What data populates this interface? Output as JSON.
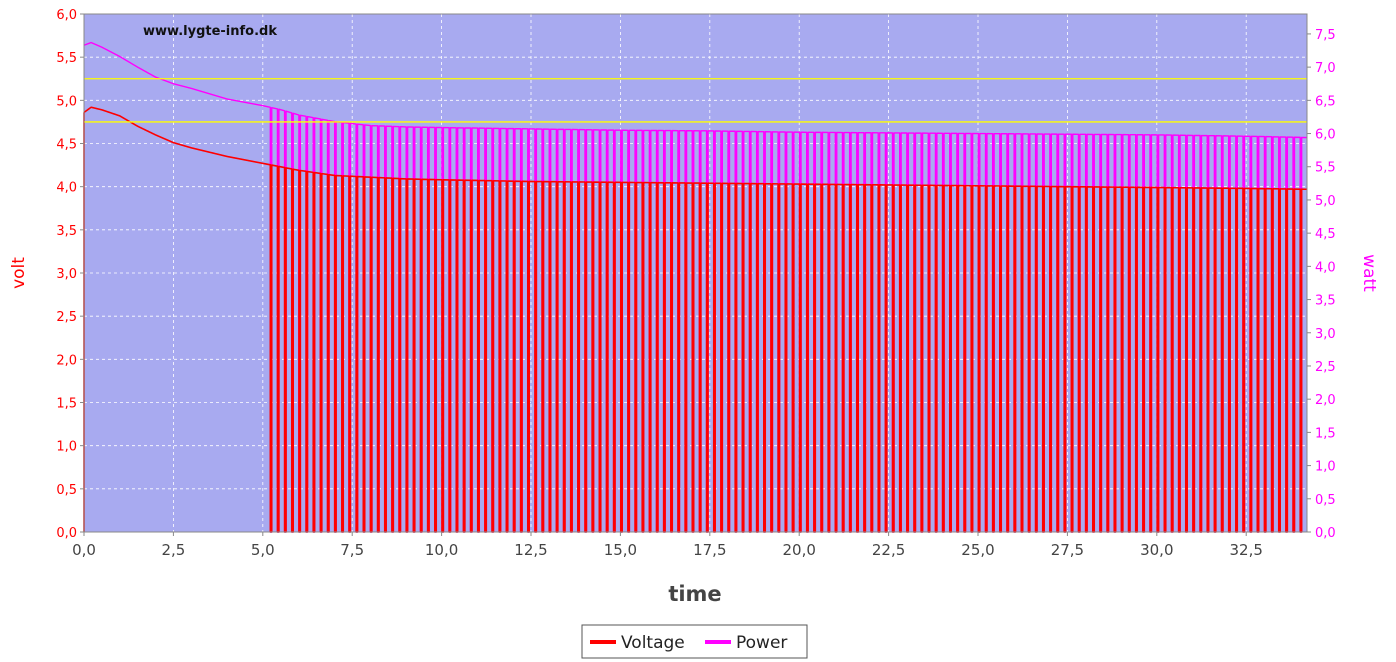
{
  "watermark": "www.lygte-info.dk",
  "chart_data": {
    "type": "line",
    "title": "",
    "xlabel": "time",
    "ylabel": "volt",
    "y2label": "watt",
    "xlim": [
      0,
      34.2
    ],
    "ylim": [
      0,
      6.0
    ],
    "y2lim": [
      0,
      7.8
    ],
    "x_ticks": [
      "0,0",
      "2,5",
      "5,0",
      "7,5",
      "10,0",
      "12,5",
      "15,0",
      "17,5",
      "20,0",
      "22,5",
      "25,0",
      "27,5",
      "30,0",
      "32,5"
    ],
    "x_tick_values": [
      0,
      2.5,
      5,
      7.5,
      10,
      12.5,
      15,
      17.5,
      20,
      22.5,
      25,
      27.5,
      30,
      32.5
    ],
    "y_ticks": [
      "0,0",
      "0,5",
      "1,0",
      "1,5",
      "2,0",
      "2,5",
      "3,0",
      "3,5",
      "4,0",
      "4,5",
      "5,0",
      "5,5",
      "6,0"
    ],
    "y_tick_values": [
      0,
      0.5,
      1.0,
      1.5,
      2.0,
      2.5,
      3.0,
      3.5,
      4.0,
      4.5,
      5.0,
      5.5,
      6.0
    ],
    "y2_ticks": [
      "0,0",
      "0,5",
      "1,0",
      "1,5",
      "2,0",
      "2,5",
      "3,0",
      "3,5",
      "4,0",
      "4,5",
      "5,0",
      "5,5",
      "6,0",
      "6,5",
      "7,0",
      "7,5"
    ],
    "y2_tick_values": [
      0,
      0.5,
      1.0,
      1.5,
      2.0,
      2.5,
      3.0,
      3.5,
      4.0,
      4.5,
      5.0,
      5.5,
      6.0,
      6.5,
      7.0,
      7.5
    ],
    "reference_lines_volt": [
      5.25,
      4.75
    ],
    "pulsing_start": 5.05,
    "pulse_period": 0.2,
    "grid": true,
    "legend_position": "bottom-center",
    "colors": {
      "plot_background": "#a8aaf0",
      "voltage": "#ff0000",
      "power": "#ff00ff",
      "reference": "#ffff00",
      "grid": "#ffffff"
    },
    "series": [
      {
        "name": "Voltage",
        "axis": "left",
        "x": [
          0,
          0.2,
          0.5,
          1.0,
          1.5,
          2.0,
          2.5,
          3.0,
          3.5,
          4.0,
          4.5,
          5.0,
          5.5,
          6.0,
          6.5,
          7.0,
          7.5,
          8.0,
          9.0,
          10.0,
          12.5,
          15.0,
          17.5,
          20.0,
          22.5,
          25.0,
          27.5,
          30.0,
          32.5,
          34.2
        ],
        "values": [
          4.86,
          4.92,
          4.89,
          4.82,
          4.7,
          4.6,
          4.51,
          4.45,
          4.4,
          4.35,
          4.31,
          4.27,
          4.23,
          4.19,
          4.16,
          4.13,
          4.12,
          4.11,
          4.09,
          4.08,
          4.06,
          4.05,
          4.04,
          4.03,
          4.02,
          4.01,
          4.0,
          3.99,
          3.98,
          3.97
        ]
      },
      {
        "name": "Power",
        "axis": "right",
        "x": [
          0,
          0.2,
          0.5,
          1.0,
          1.5,
          2.0,
          2.5,
          3.0,
          3.5,
          4.0,
          4.5,
          5.0,
          5.5,
          6.0,
          6.5,
          7.0,
          7.5,
          8.0,
          9.0,
          10.0,
          12.5,
          15.0,
          17.5,
          20.0,
          22.5,
          25.0,
          27.5,
          30.0,
          32.5,
          34.2
        ],
        "values": [
          7.33,
          7.37,
          7.3,
          7.16,
          7.0,
          6.85,
          6.75,
          6.68,
          6.6,
          6.52,
          6.47,
          6.42,
          6.36,
          6.28,
          6.23,
          6.18,
          6.15,
          6.12,
          6.1,
          6.09,
          6.07,
          6.05,
          6.04,
          6.02,
          6.01,
          6.0,
          5.99,
          5.98,
          5.96,
          5.94
        ]
      }
    ]
  }
}
